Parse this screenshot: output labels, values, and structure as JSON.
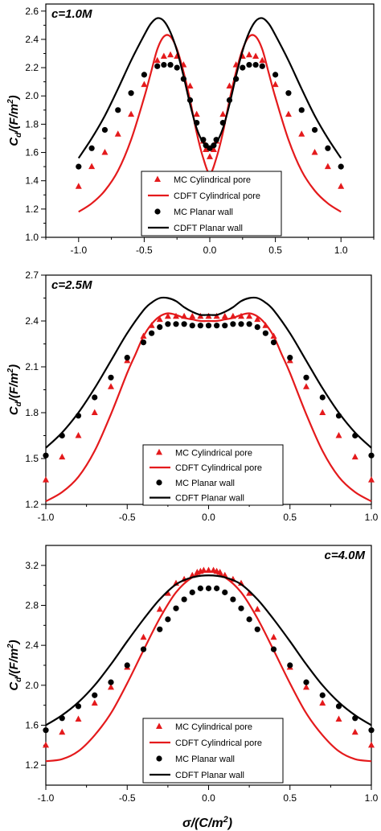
{
  "figure": {
    "xlabel_prefix": "σ/(C/m",
    "xlabel_sup": "2",
    "xlabel_suffix": ")"
  },
  "legend_entries": [
    {
      "key": "mc_cyl",
      "label": "MC Cylindrical pore",
      "color": "#e41a1c",
      "kind": "triangle"
    },
    {
      "key": "cdft_cyl",
      "label": "CDFT Cylindrical pore",
      "color": "#e41a1c",
      "kind": "line"
    },
    {
      "key": "mc_planar",
      "label": "MC Planar wall",
      "color": "#000000",
      "kind": "circle"
    },
    {
      "key": "cdft_planar",
      "label": "CDFT Planar wall",
      "color": "#000000",
      "kind": "line"
    }
  ],
  "chart_data": [
    {
      "type": "line",
      "title": "c=1.0M",
      "title_position": "top-left",
      "ylabel_main": "C",
      "ylabel_sub": "d",
      "ylabel_rest": "/(F/m",
      "ylabel_sup": "2",
      "ylabel_end": ")",
      "xlim": [
        -1.25,
        1.25
      ],
      "ylim": [
        1.0,
        2.65
      ],
      "xticks": [
        "-1.0",
        "-0.5",
        "0.0",
        "0.5",
        "1.0"
      ],
      "xtick_values": [
        -1.0,
        -0.5,
        0.0,
        0.5,
        1.0
      ],
      "yticks": [
        "1.0",
        "1.2",
        "1.4",
        "1.6",
        "1.8",
        "2.0",
        "2.2",
        "2.4",
        "2.6"
      ],
      "ytick_values": [
        1.0,
        1.2,
        1.4,
        1.6,
        1.8,
        2.0,
        2.2,
        2.4,
        2.6
      ],
      "legend_placement": "bottom-center",
      "series": [
        {
          "name": "MC Cylindrical pore",
          "key": "mc_cyl",
          "x": [
            -1.0,
            -0.9,
            -0.8,
            -0.7,
            -0.6,
            -0.5,
            -0.4,
            -0.35,
            -0.3,
            -0.25,
            -0.2,
            -0.15,
            -0.1,
            -0.05,
            -0.03,
            0.0,
            0.03,
            0.05,
            0.1,
            0.15,
            0.2,
            0.25,
            0.3,
            0.35,
            0.4,
            0.5,
            0.6,
            0.7,
            0.8,
            0.9,
            1.0
          ],
          "y": [
            1.36,
            1.5,
            1.6,
            1.73,
            1.87,
            2.08,
            2.25,
            2.28,
            2.29,
            2.28,
            2.22,
            2.07,
            1.87,
            1.68,
            1.62,
            1.57,
            1.62,
            1.68,
            1.87,
            2.07,
            2.22,
            2.28,
            2.29,
            2.28,
            2.25,
            2.08,
            1.87,
            1.73,
            1.6,
            1.5,
            1.36
          ]
        },
        {
          "name": "CDFT Cylindrical pore",
          "key": "cdft_cyl",
          "x": [
            -1.0,
            -0.9,
            -0.8,
            -0.7,
            -0.6,
            -0.5,
            -0.45,
            -0.4,
            -0.35,
            -0.3,
            -0.25,
            -0.2,
            -0.15,
            -0.1,
            -0.05,
            0.0,
            0.05,
            0.1,
            0.15,
            0.2,
            0.25,
            0.3,
            0.35,
            0.4,
            0.45,
            0.5,
            0.6,
            0.7,
            0.8,
            0.9,
            1.0
          ],
          "y": [
            1.18,
            1.24,
            1.33,
            1.47,
            1.69,
            1.99,
            2.16,
            2.33,
            2.42,
            2.42,
            2.33,
            2.17,
            1.97,
            1.74,
            1.56,
            1.45,
            1.56,
            1.74,
            1.97,
            2.17,
            2.33,
            2.42,
            2.42,
            2.33,
            2.16,
            1.99,
            1.69,
            1.47,
            1.33,
            1.24,
            1.18
          ]
        },
        {
          "name": "MC Planar wall",
          "key": "mc_planar",
          "x": [
            -1.0,
            -0.9,
            -0.8,
            -0.7,
            -0.6,
            -0.5,
            -0.4,
            -0.35,
            -0.3,
            -0.25,
            -0.2,
            -0.15,
            -0.1,
            -0.05,
            -0.03,
            0.0,
            0.03,
            0.05,
            0.1,
            0.15,
            0.2,
            0.25,
            0.3,
            0.35,
            0.4,
            0.5,
            0.6,
            0.7,
            0.8,
            0.9,
            1.0
          ],
          "y": [
            1.5,
            1.63,
            1.76,
            1.9,
            2.02,
            2.15,
            2.21,
            2.22,
            2.22,
            2.2,
            2.12,
            1.97,
            1.81,
            1.69,
            1.65,
            1.63,
            1.65,
            1.69,
            1.81,
            1.97,
            2.12,
            2.2,
            2.22,
            2.22,
            2.21,
            2.15,
            2.02,
            1.9,
            1.76,
            1.63,
            1.5
          ]
        },
        {
          "name": "CDFT Planar wall",
          "key": "cdft_planar",
          "x": [
            -1.0,
            -0.9,
            -0.8,
            -0.7,
            -0.6,
            -0.5,
            -0.45,
            -0.4,
            -0.35,
            -0.3,
            -0.25,
            -0.2,
            -0.15,
            -0.1,
            -0.05,
            0.0,
            0.05,
            0.1,
            0.15,
            0.2,
            0.25,
            0.3,
            0.35,
            0.4,
            0.45,
            0.5,
            0.6,
            0.7,
            0.8,
            0.9,
            1.0
          ],
          "y": [
            1.56,
            1.7,
            1.86,
            2.05,
            2.25,
            2.43,
            2.51,
            2.55,
            2.53,
            2.45,
            2.32,
            2.14,
            1.94,
            1.77,
            1.67,
            1.64,
            1.67,
            1.77,
            1.94,
            2.14,
            2.32,
            2.45,
            2.53,
            2.55,
            2.51,
            2.43,
            2.25,
            2.05,
            1.86,
            1.7,
            1.56
          ]
        }
      ]
    },
    {
      "type": "line",
      "title": "c=2.5M",
      "title_position": "top-left",
      "ylabel_main": "C",
      "ylabel_sub": "d",
      "ylabel_rest": "/(F/m",
      "ylabel_sup": "2",
      "ylabel_end": ")",
      "xlim": [
        -1.0,
        1.0
      ],
      "ylim": [
        1.2,
        2.7
      ],
      "xticks": [
        "-1.0",
        "-0.5",
        "0.0",
        "0.5",
        "1.0"
      ],
      "xtick_values": [
        -1.0,
        -0.5,
        0.0,
        0.5,
        1.0
      ],
      "yticks": [
        "1.2",
        "1.5",
        "1.8",
        "2.1",
        "2.4",
        "2.7"
      ],
      "ytick_values": [
        1.2,
        1.5,
        1.8,
        2.1,
        2.4,
        2.7
      ],
      "legend_placement": "bottom-center",
      "series": [
        {
          "name": "MC Cylindrical pore",
          "key": "mc_cyl",
          "x": [
            -1.0,
            -0.9,
            -0.8,
            -0.7,
            -0.6,
            -0.5,
            -0.4,
            -0.35,
            -0.3,
            -0.25,
            -0.2,
            -0.15,
            -0.1,
            -0.05,
            0.0,
            0.05,
            0.1,
            0.15,
            0.2,
            0.25,
            0.3,
            0.35,
            0.4,
            0.5,
            0.6,
            0.7,
            0.8,
            0.9,
            1.0
          ],
          "y": [
            1.36,
            1.51,
            1.65,
            1.8,
            1.97,
            2.14,
            2.3,
            2.37,
            2.41,
            2.43,
            2.43,
            2.43,
            2.43,
            2.43,
            2.43,
            2.43,
            2.43,
            2.43,
            2.43,
            2.43,
            2.41,
            2.37,
            2.3,
            2.14,
            1.97,
            1.8,
            1.65,
            1.51,
            1.36
          ]
        },
        {
          "name": "CDFT Cylindrical pore",
          "key": "cdft_cyl",
          "x": [
            -1.0,
            -0.9,
            -0.8,
            -0.7,
            -0.6,
            -0.5,
            -0.45,
            -0.4,
            -0.35,
            -0.3,
            -0.25,
            -0.2,
            -0.15,
            -0.1,
            -0.05,
            0.0,
            0.05,
            0.1,
            0.15,
            0.2,
            0.25,
            0.3,
            0.35,
            0.4,
            0.45,
            0.5,
            0.6,
            0.7,
            0.8,
            0.9,
            1.0
          ],
          "y": [
            1.22,
            1.28,
            1.38,
            1.55,
            1.79,
            2.06,
            2.18,
            2.3,
            2.38,
            2.43,
            2.45,
            2.44,
            2.42,
            2.41,
            2.4,
            2.4,
            2.4,
            2.41,
            2.42,
            2.44,
            2.45,
            2.43,
            2.38,
            2.3,
            2.18,
            2.06,
            1.79,
            1.55,
            1.38,
            1.28,
            1.22
          ]
        },
        {
          "name": "MC Planar wall",
          "key": "mc_planar",
          "x": [
            -1.0,
            -0.9,
            -0.8,
            -0.7,
            -0.6,
            -0.5,
            -0.4,
            -0.35,
            -0.3,
            -0.25,
            -0.2,
            -0.15,
            -0.1,
            -0.05,
            0.0,
            0.05,
            0.1,
            0.15,
            0.2,
            0.25,
            0.3,
            0.35,
            0.4,
            0.5,
            0.6,
            0.7,
            0.8,
            0.9,
            1.0
          ],
          "y": [
            1.52,
            1.65,
            1.78,
            1.9,
            2.03,
            2.16,
            2.26,
            2.32,
            2.36,
            2.38,
            2.38,
            2.38,
            2.37,
            2.37,
            2.37,
            2.37,
            2.37,
            2.38,
            2.38,
            2.38,
            2.36,
            2.32,
            2.26,
            2.16,
            2.03,
            1.9,
            1.78,
            1.65,
            1.52
          ]
        },
        {
          "name": "CDFT Planar wall",
          "key": "cdft_planar",
          "x": [
            -1.0,
            -0.9,
            -0.8,
            -0.7,
            -0.6,
            -0.5,
            -0.4,
            -0.35,
            -0.3,
            -0.25,
            -0.2,
            -0.15,
            -0.1,
            -0.05,
            0.0,
            0.05,
            0.1,
            0.15,
            0.2,
            0.25,
            0.3,
            0.35,
            0.4,
            0.5,
            0.6,
            0.7,
            0.8,
            0.9,
            1.0
          ],
          "y": [
            1.57,
            1.67,
            1.8,
            1.96,
            2.14,
            2.32,
            2.47,
            2.52,
            2.55,
            2.55,
            2.53,
            2.49,
            2.46,
            2.44,
            2.44,
            2.44,
            2.46,
            2.49,
            2.53,
            2.55,
            2.55,
            2.52,
            2.47,
            2.32,
            2.14,
            1.96,
            1.8,
            1.67,
            1.57
          ]
        }
      ]
    },
    {
      "type": "line",
      "title": "c=4.0M",
      "title_position": "top-right",
      "ylabel_main": "C",
      "ylabel_sub": "d",
      "ylabel_rest": "/(F/m",
      "ylabel_sup": "2",
      "ylabel_end": ")",
      "xlim": [
        -1.0,
        1.0
      ],
      "ylim": [
        1.0,
        3.4
      ],
      "xticks": [
        "-1.0",
        "-0.5",
        "0.0",
        "0.5",
        "1.0"
      ],
      "xtick_values": [
        -1.0,
        -0.5,
        0.0,
        0.5,
        1.0
      ],
      "yticks": [
        "1.2",
        "1.6",
        "2.0",
        "2.4",
        "2.8",
        "3.2"
      ],
      "ytick_values": [
        1.2,
        1.6,
        2.0,
        2.4,
        2.8,
        3.2
      ],
      "legend_placement": "bottom-center",
      "series": [
        {
          "name": "MC Cylindrical pore",
          "key": "mc_cyl",
          "x": [
            -1.0,
            -0.9,
            -0.8,
            -0.7,
            -0.6,
            -0.5,
            -0.4,
            -0.3,
            -0.25,
            -0.2,
            -0.15,
            -0.1,
            -0.07,
            -0.05,
            -0.03,
            0.0,
            0.03,
            0.05,
            0.07,
            0.1,
            0.15,
            0.2,
            0.25,
            0.3,
            0.4,
            0.5,
            0.6,
            0.7,
            0.8,
            0.9,
            1.0
          ],
          "y": [
            1.4,
            1.53,
            1.66,
            1.82,
            1.98,
            2.18,
            2.48,
            2.76,
            2.92,
            3.02,
            3.06,
            3.1,
            3.13,
            3.14,
            3.15,
            3.15,
            3.15,
            3.14,
            3.13,
            3.1,
            3.06,
            3.02,
            2.92,
            2.76,
            2.48,
            2.18,
            1.98,
            1.82,
            1.66,
            1.53,
            1.4
          ]
        },
        {
          "name": "CDFT Cylindrical pore",
          "key": "cdft_cyl",
          "x": [
            -1.0,
            -0.9,
            -0.8,
            -0.7,
            -0.6,
            -0.5,
            -0.4,
            -0.3,
            -0.2,
            -0.1,
            0.0,
            0.1,
            0.2,
            0.3,
            0.4,
            0.5,
            0.6,
            0.7,
            0.8,
            0.9,
            1.0
          ],
          "y": [
            1.24,
            1.26,
            1.34,
            1.5,
            1.72,
            2.02,
            2.35,
            2.67,
            2.93,
            3.08,
            3.14,
            3.08,
            2.93,
            2.67,
            2.35,
            2.02,
            1.72,
            1.5,
            1.34,
            1.26,
            1.24
          ]
        },
        {
          "name": "MC Planar wall",
          "key": "mc_planar",
          "x": [
            -1.0,
            -0.9,
            -0.8,
            -0.7,
            -0.6,
            -0.5,
            -0.4,
            -0.3,
            -0.25,
            -0.2,
            -0.15,
            -0.1,
            -0.05,
            0.0,
            0.05,
            0.1,
            0.15,
            0.2,
            0.25,
            0.3,
            0.4,
            0.5,
            0.6,
            0.7,
            0.8,
            0.9,
            1.0
          ],
          "y": [
            1.55,
            1.67,
            1.79,
            1.9,
            2.03,
            2.2,
            2.36,
            2.56,
            2.66,
            2.77,
            2.86,
            2.93,
            2.97,
            2.97,
            2.97,
            2.93,
            2.86,
            2.77,
            2.66,
            2.56,
            2.36,
            2.2,
            2.03,
            1.9,
            1.79,
            1.67,
            1.55
          ]
        },
        {
          "name": "CDFT Planar wall",
          "key": "cdft_planar",
          "x": [
            -1.0,
            -0.9,
            -0.8,
            -0.7,
            -0.6,
            -0.5,
            -0.4,
            -0.3,
            -0.2,
            -0.1,
            0.0,
            0.1,
            0.2,
            0.3,
            0.4,
            0.5,
            0.6,
            0.7,
            0.8,
            0.9,
            1.0
          ],
          "y": [
            1.6,
            1.7,
            1.83,
            2.0,
            2.21,
            2.44,
            2.66,
            2.86,
            3.01,
            3.08,
            3.1,
            3.08,
            3.01,
            2.86,
            2.66,
            2.44,
            2.21,
            2.0,
            1.83,
            1.7,
            1.6
          ]
        }
      ]
    }
  ]
}
